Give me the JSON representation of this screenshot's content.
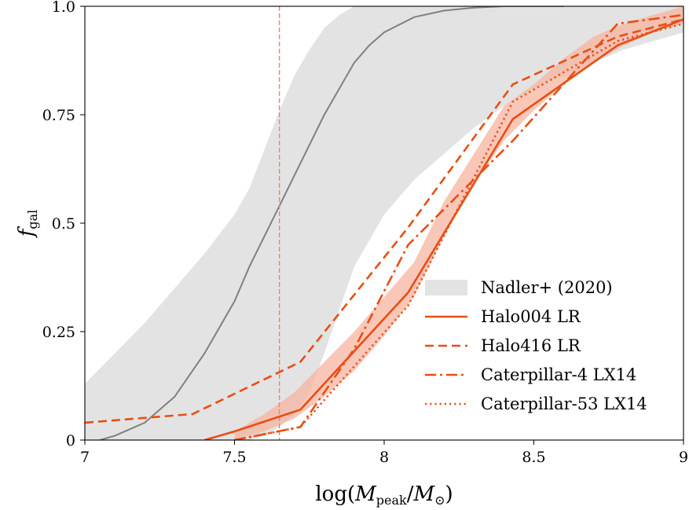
{
  "chart_data": {
    "type": "line",
    "xlabel": "log(M_peak/M_⊙)",
    "ylabel": "f_gal",
    "xlim": [
      7,
      9
    ],
    "ylim": [
      0,
      1
    ],
    "xticks": [
      7,
      7.5,
      8,
      8.5,
      9
    ],
    "xtick_labels": [
      "7",
      "7.5",
      "8",
      "8.5",
      "9"
    ],
    "yticks": [
      0,
      0.25,
      0.5,
      0.75,
      1.0
    ],
    "ytick_labels": [
      "0",
      "0.25",
      "0.5",
      "0.75",
      "1.0"
    ],
    "grid": false,
    "legend_position": "lower-right",
    "vline": {
      "x": 7.65,
      "color": "#f08070",
      "style": "dashed"
    },
    "band": {
      "name": "Nadler+ (2020)",
      "color": "#e3e3e3",
      "x": [
        7.0,
        7.1,
        7.2,
        7.3,
        7.4,
        7.5,
        7.55,
        7.6,
        7.65,
        7.7,
        7.75,
        7.8,
        7.85,
        7.9,
        8.0,
        8.1,
        8.2,
        8.3,
        8.4,
        8.5,
        8.6,
        8.7,
        8.8,
        8.9,
        9.0
      ],
      "lower": [
        0.0,
        0.0,
        0.0,
        0.0,
        0.0,
        0.0,
        0.0,
        0.01,
        0.03,
        0.06,
        0.11,
        0.2,
        0.3,
        0.4,
        0.52,
        0.6,
        0.66,
        0.72,
        0.77,
        0.81,
        0.84,
        0.87,
        0.9,
        0.92,
        0.94
      ],
      "upper": [
        0.13,
        0.2,
        0.27,
        0.35,
        0.43,
        0.52,
        0.58,
        0.67,
        0.76,
        0.84,
        0.9,
        0.95,
        0.98,
        1.0,
        1.0,
        1.0,
        1.0,
        1.0,
        1.0,
        1.0,
        1.0,
        1.0,
        1.0,
        1.0,
        1.0
      ]
    },
    "median": {
      "color": "#808080",
      "x": [
        7.05,
        7.1,
        7.2,
        7.3,
        7.4,
        7.5,
        7.55,
        7.6,
        7.65,
        7.7,
        7.75,
        7.8,
        7.85,
        7.9,
        7.95,
        8.0,
        8.1,
        8.2,
        8.3,
        8.4,
        8.5,
        8.6
      ],
      "y": [
        0.0,
        0.01,
        0.04,
        0.1,
        0.2,
        0.32,
        0.4,
        0.47,
        0.54,
        0.61,
        0.68,
        0.75,
        0.81,
        0.87,
        0.91,
        0.94,
        0.975,
        0.99,
        0.997,
        1.0,
        1.0,
        1.0
      ]
    },
    "halo004_band": {
      "color": "#f7b4a0",
      "x": [
        7.5,
        7.6,
        7.7,
        7.8,
        7.9,
        8.0,
        8.1,
        8.2,
        8.3,
        8.4,
        8.5,
        8.6,
        8.7,
        8.8,
        8.9,
        9.0
      ],
      "lower": [
        0.0,
        0.02,
        0.05,
        0.1,
        0.16,
        0.24,
        0.33,
        0.47,
        0.59,
        0.69,
        0.76,
        0.82,
        0.87,
        0.91,
        0.94,
        0.96
      ],
      "upper": [
        0.02,
        0.06,
        0.11,
        0.18,
        0.25,
        0.33,
        0.41,
        0.55,
        0.66,
        0.77,
        0.82,
        0.88,
        0.93,
        0.96,
        0.98,
        1.0
      ]
    },
    "series": [
      {
        "name": "Halo004 LR",
        "style": "solid",
        "color": "#e84e13",
        "x": [
          7.4,
          7.5,
          7.72,
          8.08,
          8.43,
          8.78,
          9.0
        ],
        "y": [
          0.0,
          0.02,
          0.07,
          0.34,
          0.74,
          0.91,
          0.97
        ]
      },
      {
        "name": "Halo416 LR",
        "style": "dashed",
        "color": "#e84e13",
        "x": [
          7.0,
          7.36,
          7.72,
          8.08,
          8.43,
          8.78,
          9.0
        ],
        "y": [
          0.04,
          0.06,
          0.18,
          0.49,
          0.82,
          0.93,
          0.97
        ]
      },
      {
        "name": "Caterpillar-4 LX14",
        "style": "dashdot",
        "color": "#e84e13",
        "x": [
          7.5,
          7.72,
          7.9,
          8.08,
          8.43,
          8.78,
          9.0
        ],
        "y": [
          0.0,
          0.03,
          0.21,
          0.45,
          0.69,
          0.96,
          0.98
        ]
      },
      {
        "name": "Caterpillar-53 LX14",
        "style": "dotted",
        "color": "#e84e13",
        "x": [
          7.5,
          7.72,
          8.08,
          8.43,
          8.78,
          9.0
        ],
        "y": [
          0.0,
          0.03,
          0.31,
          0.78,
          0.92,
          0.96
        ]
      }
    ]
  }
}
